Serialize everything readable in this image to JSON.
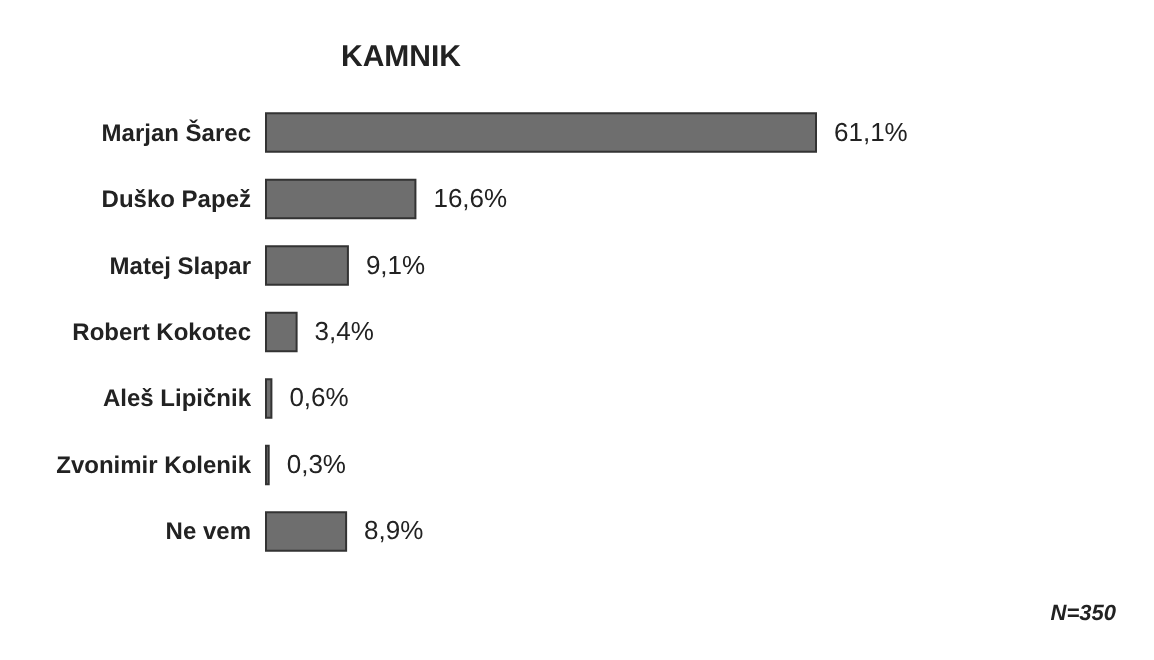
{
  "chart_data": {
    "type": "bar",
    "orientation": "horizontal",
    "title": "KAMNIK",
    "categories": [
      "Marjan Šarec",
      "Duško Papež",
      "Matej Slapar",
      "Robert Kokotec",
      "Aleš Lipičnik",
      "Zvonimir Kolenik",
      "Ne vem"
    ],
    "values": [
      61.1,
      16.6,
      9.1,
      3.4,
      0.6,
      0.3,
      8.9
    ],
    "value_labels": [
      "61,1%",
      "16,6%",
      "9,1%",
      "3,4%",
      "0,6%",
      "0,3%",
      "8,9%"
    ],
    "color": "#6e6e6e",
    "annotations": [
      "N=350"
    ]
  }
}
